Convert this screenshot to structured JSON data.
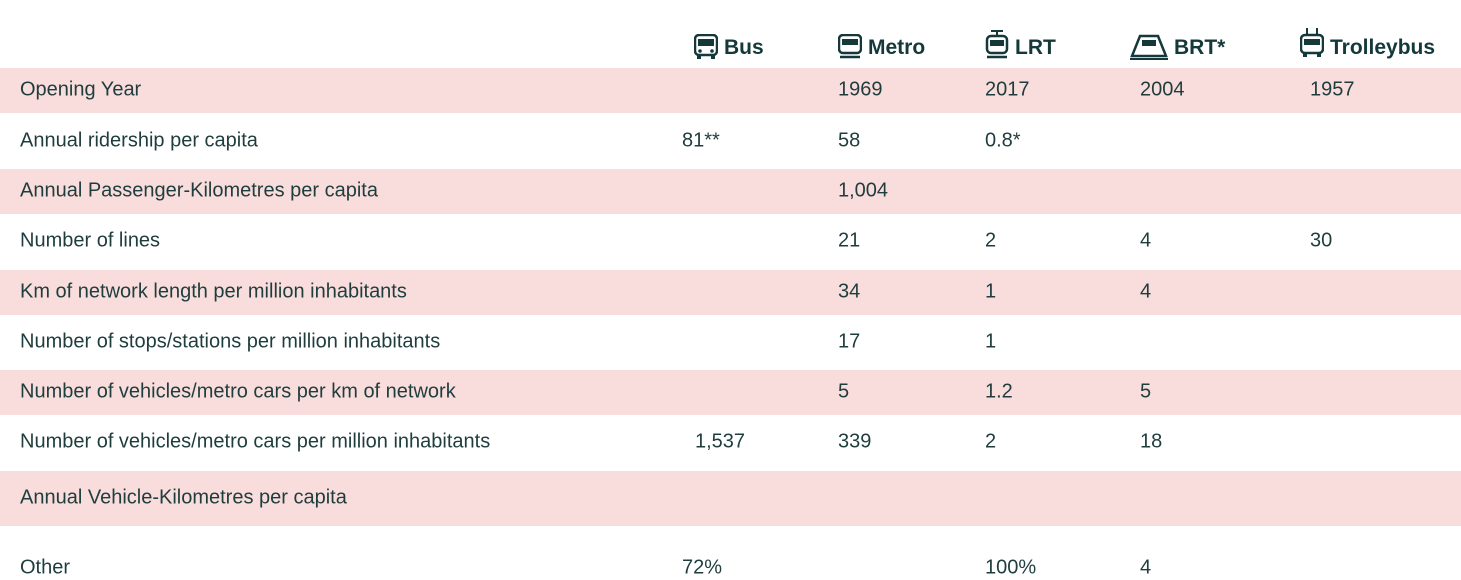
{
  "table": {
    "columns": [
      "Bus",
      "Metro",
      "LRT",
      "BRT*",
      "Trolleybus"
    ],
    "rows": [
      [
        "Opening Year",
        null,
        "1969",
        "2017",
        "2004",
        "1957"
      ],
      [
        "Annual ridership per capita",
        "81**",
        "58",
        "0.8*",
        null,
        null
      ],
      [
        "Annual Passenger-Kilometres per capita",
        null,
        "1,004",
        null,
        null,
        null
      ],
      [
        "Number of lines",
        null,
        "21",
        "2",
        "4",
        "30"
      ],
      [
        "Km of network length per million inhabitants",
        null,
        "34",
        "1",
        "4",
        null
      ],
      [
        "Number of stops/stations per million inhabitants",
        null,
        "17",
        "1",
        null,
        null
      ],
      [
        "Number of vehicles/metro cars per km of network",
        null,
        "5",
        "1.2",
        "5",
        null
      ],
      [
        "Number of vehicles/metro cars per million inhabitants",
        "1,537",
        "339",
        "2",
        "18",
        null
      ],
      [
        "Annual Vehicle-Kilometres per capita",
        null,
        null,
        null,
        null,
        null
      ],
      [
        "Other",
        "72%",
        null,
        "100%",
        "4",
        null
      ]
    ]
  }
}
